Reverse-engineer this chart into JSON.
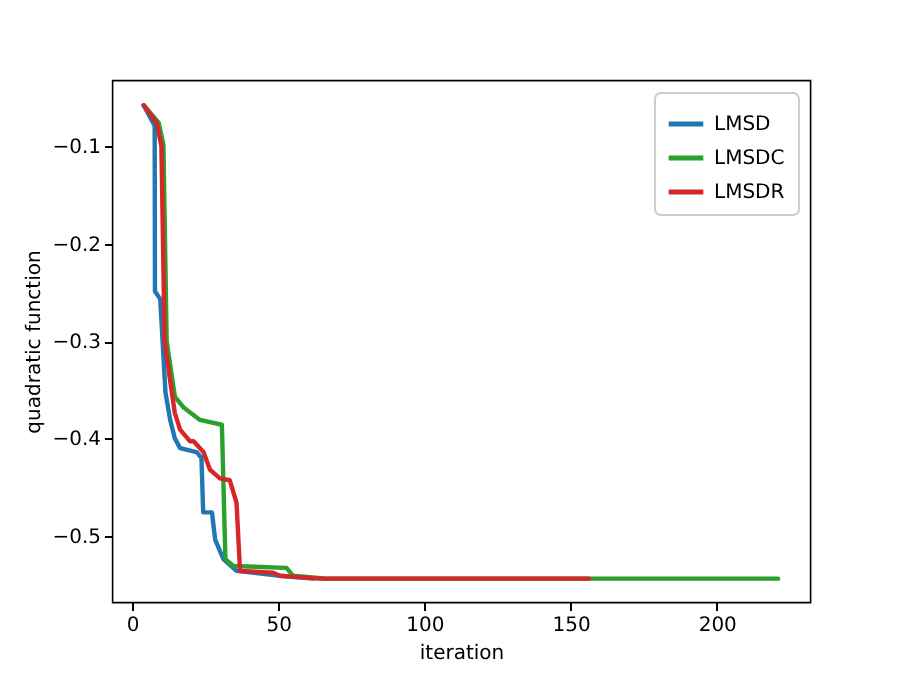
{
  "chart_data": {
    "type": "line",
    "xlabel": "iteration",
    "ylabel": "quadratic function",
    "xlim": [
      -6.9,
      231.9
    ],
    "ylim": [
      -0.568,
      -0.032
    ],
    "xticks": [
      0,
      50,
      100,
      150,
      200
    ],
    "yticks": [
      {
        "value": -0.1,
        "label": "−0.1"
      },
      {
        "value": -0.2,
        "label": "−0.2"
      },
      {
        "value": -0.3,
        "label": "−0.3"
      },
      {
        "value": -0.4,
        "label": "−0.4"
      },
      {
        "value": -0.5,
        "label": "−0.5"
      }
    ],
    "grid": false,
    "legend": "top right",
    "line_style": "solid",
    "marker": "none",
    "series": [
      {
        "name": "LMSD",
        "color": "#1f77b4",
        "x": [
          3.9,
          7.7,
          7.8,
          9.6,
          11.4,
          13,
          14.6,
          16.4,
          22,
          23.7,
          24.3,
          27.3,
          28.4,
          31.2,
          35.7,
          50.5,
          62
        ],
        "values": [
          -0.058,
          -0.079,
          -0.249,
          -0.257,
          -0.353,
          -0.381,
          -0.4,
          -0.41,
          -0.414,
          -0.42,
          -0.476,
          -0.476,
          -0.504,
          -0.524,
          -0.536,
          -0.541,
          -0.544
        ]
      },
      {
        "name": "LMSDC",
        "color": "#2ca02c",
        "x": [
          4,
          9.1,
          10.7,
          11.8,
          14.6,
          17.5,
          23.2,
          30.7,
          31.9,
          34.6,
          52.8,
          55,
          66.4,
          221
        ],
        "values": [
          -0.058,
          -0.076,
          -0.099,
          -0.3,
          -0.357,
          -0.368,
          -0.381,
          -0.386,
          -0.524,
          -0.531,
          -0.533,
          -0.541,
          -0.544,
          -0.544
        ]
      },
      {
        "name": "LMSDR",
        "color": "#d62728",
        "x": [
          4,
          8.4,
          10,
          11.1,
          13,
          14.6,
          16.4,
          19.8,
          21,
          24.4,
          26.6,
          30,
          33.4,
          35.7,
          36.9,
          48.2,
          50.5,
          64,
          156.3
        ],
        "values": [
          -0.058,
          -0.076,
          -0.1,
          -0.3,
          -0.341,
          -0.374,
          -0.391,
          -0.403,
          -0.403,
          -0.414,
          -0.432,
          -0.441,
          -0.443,
          -0.466,
          -0.536,
          -0.538,
          -0.541,
          -0.544,
          -0.544
        ]
      }
    ]
  }
}
